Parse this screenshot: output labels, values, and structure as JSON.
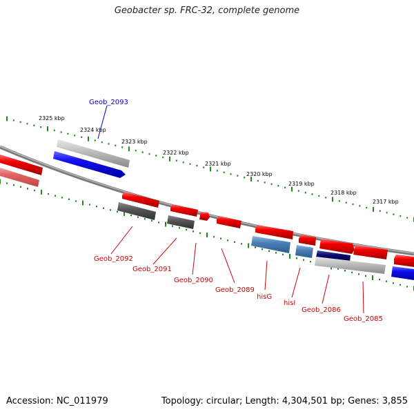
{
  "title": "Geobacter sp. FRC-32, complete genome",
  "footer": {
    "accession": "Accession: NC_011979",
    "info": "Topology: circular; Length: 4,304,501 bp; Genes: 3,855"
  },
  "colors": {
    "backbone": "#7a7a7a",
    "tick": "#1e8a1e",
    "forward_red": "#e80000",
    "reverse_blue": "#1414e6",
    "gray": "#b5b5b5",
    "dark_gray": "#555555",
    "steel_blue": "#4a7fb5",
    "navy": "#0a0a70",
    "label_red": "#cc0000",
    "label_blue": "#0000cc"
  },
  "scale_labels": [
    "2325 kbp",
    "2324 kbp",
    "2323 kbp",
    "2322 kbp",
    "2321 kbp",
    "2320 kbp",
    "2319 kbp",
    "2318 kbp",
    "2317 kbp"
  ],
  "gene_labels": [
    {
      "text": "Geob_2093",
      "color": "blue"
    },
    {
      "text": "Geob_2092",
      "color": "red"
    },
    {
      "text": "Geob_2091",
      "color": "red"
    },
    {
      "text": "Geob_2090",
      "color": "red"
    },
    {
      "text": "Geob_2089",
      "color": "red"
    },
    {
      "text": "hisG",
      "color": "red"
    },
    {
      "text": "hisI",
      "color": "red"
    },
    {
      "text": "Geob_2086",
      "color": "red"
    },
    {
      "text": "Geob_2085",
      "color": "red"
    }
  ]
}
